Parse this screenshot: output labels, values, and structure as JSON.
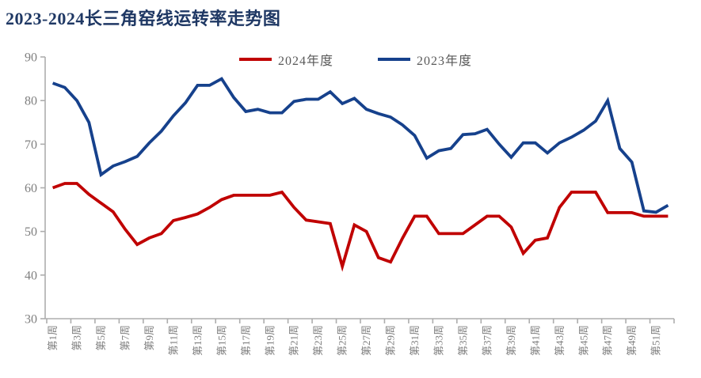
{
  "title": "2023-2024长三角窑线运转率走势图",
  "chart_data": {
    "type": "line",
    "title": "2023-2024长三角窑线运转率走势图",
    "weeks": 52,
    "x_tick_labels": [
      "第1周",
      "第3周",
      "第5周",
      "第7周",
      "第9周",
      "第11周",
      "第13周",
      "第15周",
      "第17周",
      "第19周",
      "第21周",
      "第23周",
      "第25周",
      "第27周",
      "第29周",
      "第31周",
      "第33周",
      "第35周",
      "第37周",
      "第39周",
      "第41周",
      "第43周",
      "第45周",
      "第47周",
      "第49周",
      "第51周"
    ],
    "ylim": [
      30,
      90
    ],
    "yticks": [
      30,
      40,
      50,
      60,
      70,
      80,
      90
    ],
    "grid": false,
    "legend_position": "top-center",
    "axis_color": "#ADADAD",
    "tick_label_color": "#7F7F7F",
    "series": [
      {
        "name": "2024年度",
        "color": "#C00000",
        "values": [
          60,
          61,
          61,
          58.5,
          56.5,
          54.5,
          50.5,
          47,
          48.5,
          49.5,
          52.5,
          53.2,
          54,
          55.5,
          57.3,
          58.3,
          58.3,
          58.3,
          58.3,
          59,
          55.5,
          52.6,
          52.2,
          51.8,
          42,
          51.5,
          50,
          44,
          43,
          48.5,
          53.5,
          53.5,
          49.5,
          49.5,
          49.5,
          51.5,
          53.5,
          53.5,
          51,
          45,
          48,
          48.5,
          55.5,
          59,
          59,
          59,
          54.3,
          54.3,
          54.3,
          53.5,
          53.5,
          53.5
        ]
      },
      {
        "name": "2023年度",
        "color": "#16418C",
        "values": [
          84,
          83,
          80,
          75,
          63,
          65,
          66,
          67.2,
          70.3,
          73,
          76.5,
          79.5,
          83.5,
          83.5,
          85,
          80.7,
          77.5,
          78,
          77.2,
          77.2,
          79.8,
          80.3,
          80.3,
          82,
          79.3,
          80.5,
          78,
          77,
          76.2,
          74.4,
          72,
          66.8,
          68.5,
          69,
          72.2,
          72.4,
          73.4,
          70,
          67,
          70.3,
          70.3,
          68,
          70.3,
          71.6,
          73.2,
          75.3,
          80,
          69,
          65.9,
          54.7,
          54.4,
          56
        ]
      }
    ]
  }
}
